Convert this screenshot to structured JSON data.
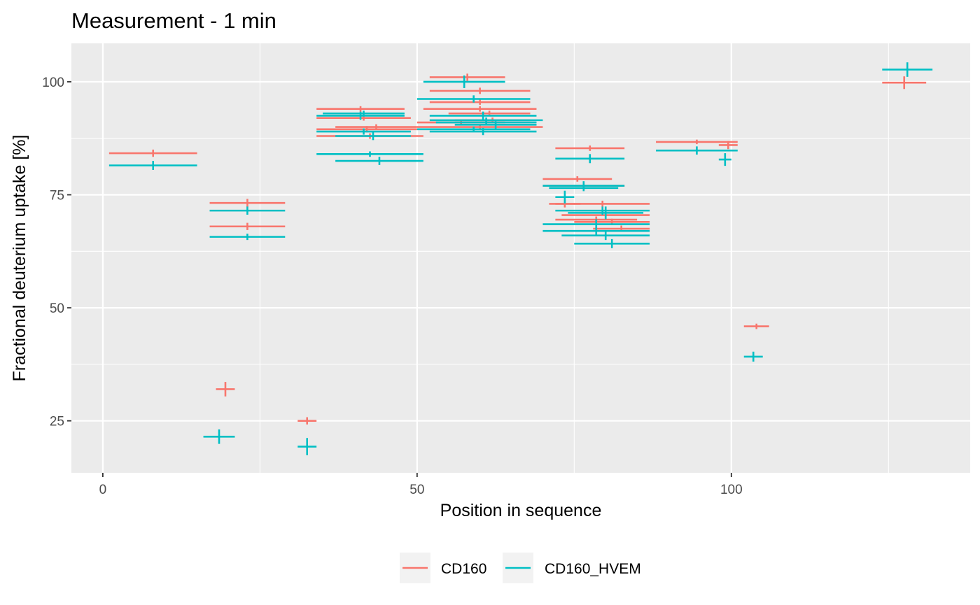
{
  "chart_data": {
    "type": "scatter",
    "title": "Measurement - 1 min",
    "xlabel": "Position in sequence",
    "ylabel": "Fractional deuterium uptake [%]",
    "xlim": [
      -5,
      138
    ],
    "ylim": [
      13.5,
      108.5
    ],
    "x_ticks": [
      0,
      50,
      100
    ],
    "y_ticks": [
      25,
      50,
      75,
      100
    ],
    "grid": true,
    "legend_position": "bottom",
    "colors": {
      "CD160": "#F8766D",
      "CD160_HVEM": "#00BFC4",
      "panel": "#EBEBEB",
      "grid": "#FFFFFF"
    },
    "series": [
      {
        "name": "CD160",
        "color": "#F8766D",
        "points": [
          {
            "start": 1,
            "end": 15,
            "y": 84.2,
            "err": 0.8
          },
          {
            "start": 17,
            "end": 29,
            "y": 73.2,
            "err": 0.9
          },
          {
            "start": 17,
            "end": 29,
            "y": 68.0,
            "err": 0.8
          },
          {
            "start": 18,
            "end": 21,
            "y": 32.0,
            "err": 1.6
          },
          {
            "start": 31,
            "end": 34,
            "y": 25.0,
            "err": 0.8
          },
          {
            "start": 34,
            "end": 48,
            "y": 94.0,
            "err": 0.6
          },
          {
            "start": 34,
            "end": 49,
            "y": 92.0,
            "err": 0.6
          },
          {
            "start": 34,
            "end": 50,
            "y": 89.5,
            "err": 0.7
          },
          {
            "start": 34,
            "end": 51,
            "y": 88.0,
            "err": 0.6
          },
          {
            "start": 37,
            "end": 50,
            "y": 90.0,
            "err": 0.6
          },
          {
            "start": 50,
            "end": 64,
            "y": 91.0,
            "err": 0.6
          },
          {
            "start": 50,
            "end": 70,
            "y": 90.0,
            "err": 0.6
          },
          {
            "start": 51,
            "end": 69,
            "y": 94.0,
            "err": 0.6
          },
          {
            "start": 52,
            "end": 64,
            "y": 101.0,
            "err": 0.8
          },
          {
            "start": 52,
            "end": 68,
            "y": 98.0,
            "err": 0.7
          },
          {
            "start": 52,
            "end": 68,
            "y": 95.5,
            "err": 0.6
          },
          {
            "start": 55,
            "end": 68,
            "y": 93.0,
            "err": 0.6
          },
          {
            "start": 56,
            "end": 68,
            "y": 91.5,
            "err": 0.6
          },
          {
            "start": 70,
            "end": 81,
            "y": 78.5,
            "err": 0.6
          },
          {
            "start": 70,
            "end": 83,
            "y": 77.0,
            "err": 0.6
          },
          {
            "start": 71,
            "end": 76,
            "y": 73.0,
            "err": 0.8
          },
          {
            "start": 72,
            "end": 87,
            "y": 73.0,
            "err": 0.7
          },
          {
            "start": 72,
            "end": 85,
            "y": 69.5,
            "err": 0.7
          },
          {
            "start": 73,
            "end": 87,
            "y": 70.5,
            "err": 0.7
          },
          {
            "start": 75,
            "end": 87,
            "y": 69.0,
            "err": 0.7
          },
          {
            "start": 78,
            "end": 87,
            "y": 67.5,
            "err": 0.7
          },
          {
            "start": 72,
            "end": 83,
            "y": 85.3,
            "err": 0.6
          },
          {
            "start": 88,
            "end": 101,
            "y": 86.7,
            "err": 0.5
          },
          {
            "start": 98,
            "end": 101,
            "y": 86.0,
            "err": 0.9
          },
          {
            "start": 102,
            "end": 106,
            "y": 45.9,
            "err": 0.6
          },
          {
            "start": 124,
            "end": 131,
            "y": 99.8,
            "err": 1.4
          }
        ]
      },
      {
        "name": "CD160_HVEM",
        "color": "#00BFC4",
        "points": [
          {
            "start": 1,
            "end": 15,
            "y": 81.5,
            "err": 1.0
          },
          {
            "start": 17,
            "end": 29,
            "y": 71.5,
            "err": 0.9
          },
          {
            "start": 17,
            "end": 29,
            "y": 65.7,
            "err": 0.7
          },
          {
            "start": 16,
            "end": 21,
            "y": 21.5,
            "err": 1.6
          },
          {
            "start": 31,
            "end": 34,
            "y": 19.3,
            "err": 1.9
          },
          {
            "start": 35,
            "end": 48,
            "y": 93.0,
            "err": 0.6
          },
          {
            "start": 34,
            "end": 48,
            "y": 92.5,
            "err": 0.9
          },
          {
            "start": 34,
            "end": 49,
            "y": 89.0,
            "err": 0.7
          },
          {
            "start": 37,
            "end": 49,
            "y": 88.0,
            "err": 0.9
          },
          {
            "start": 34,
            "end": 51,
            "y": 84.0,
            "err": 0.6
          },
          {
            "start": 37,
            "end": 51,
            "y": 82.5,
            "err": 0.9
          },
          {
            "start": 51,
            "end": 64,
            "y": 100.0,
            "err": 1.4
          },
          {
            "start": 50,
            "end": 68,
            "y": 96.2,
            "err": 0.8
          },
          {
            "start": 52,
            "end": 69,
            "y": 92.5,
            "err": 0.9
          },
          {
            "start": 52,
            "end": 70,
            "y": 91.5,
            "err": 0.6
          },
          {
            "start": 53,
            "end": 69,
            "y": 91.0,
            "err": 0.6
          },
          {
            "start": 50,
            "end": 68,
            "y": 89.5,
            "err": 0.6
          },
          {
            "start": 52,
            "end": 69,
            "y": 89.0,
            "err": 0.8
          },
          {
            "start": 56,
            "end": 69,
            "y": 90.5,
            "err": 0.8
          },
          {
            "start": 70,
            "end": 83,
            "y": 77.0,
            "err": 1.0
          },
          {
            "start": 71,
            "end": 82,
            "y": 76.5,
            "err": 0.7
          },
          {
            "start": 72,
            "end": 75,
            "y": 74.5,
            "err": 1.4
          },
          {
            "start": 72,
            "end": 87,
            "y": 71.5,
            "err": 0.9
          },
          {
            "start": 74,
            "end": 86,
            "y": 71.0,
            "err": 1.4
          },
          {
            "start": 70,
            "end": 87,
            "y": 68.5,
            "err": 1.1
          },
          {
            "start": 70,
            "end": 87,
            "y": 67.0,
            "err": 1.0
          },
          {
            "start": 73,
            "end": 87,
            "y": 66.0,
            "err": 1.0
          },
          {
            "start": 75,
            "end": 87,
            "y": 64.2,
            "err": 1.0
          },
          {
            "start": 72,
            "end": 83,
            "y": 83.0,
            "err": 1.0
          },
          {
            "start": 88,
            "end": 101,
            "y": 84.8,
            "err": 0.9
          },
          {
            "start": 98,
            "end": 100,
            "y": 82.8,
            "err": 1.4
          },
          {
            "start": 102,
            "end": 105,
            "y": 39.2,
            "err": 1.1
          },
          {
            "start": 124,
            "end": 132,
            "y": 102.7,
            "err": 1.6
          }
        ]
      }
    ],
    "legend": [
      {
        "label": "CD160",
        "color": "#F8766D"
      },
      {
        "label": "CD160_HVEM",
        "color": "#00BFC4"
      }
    ]
  }
}
